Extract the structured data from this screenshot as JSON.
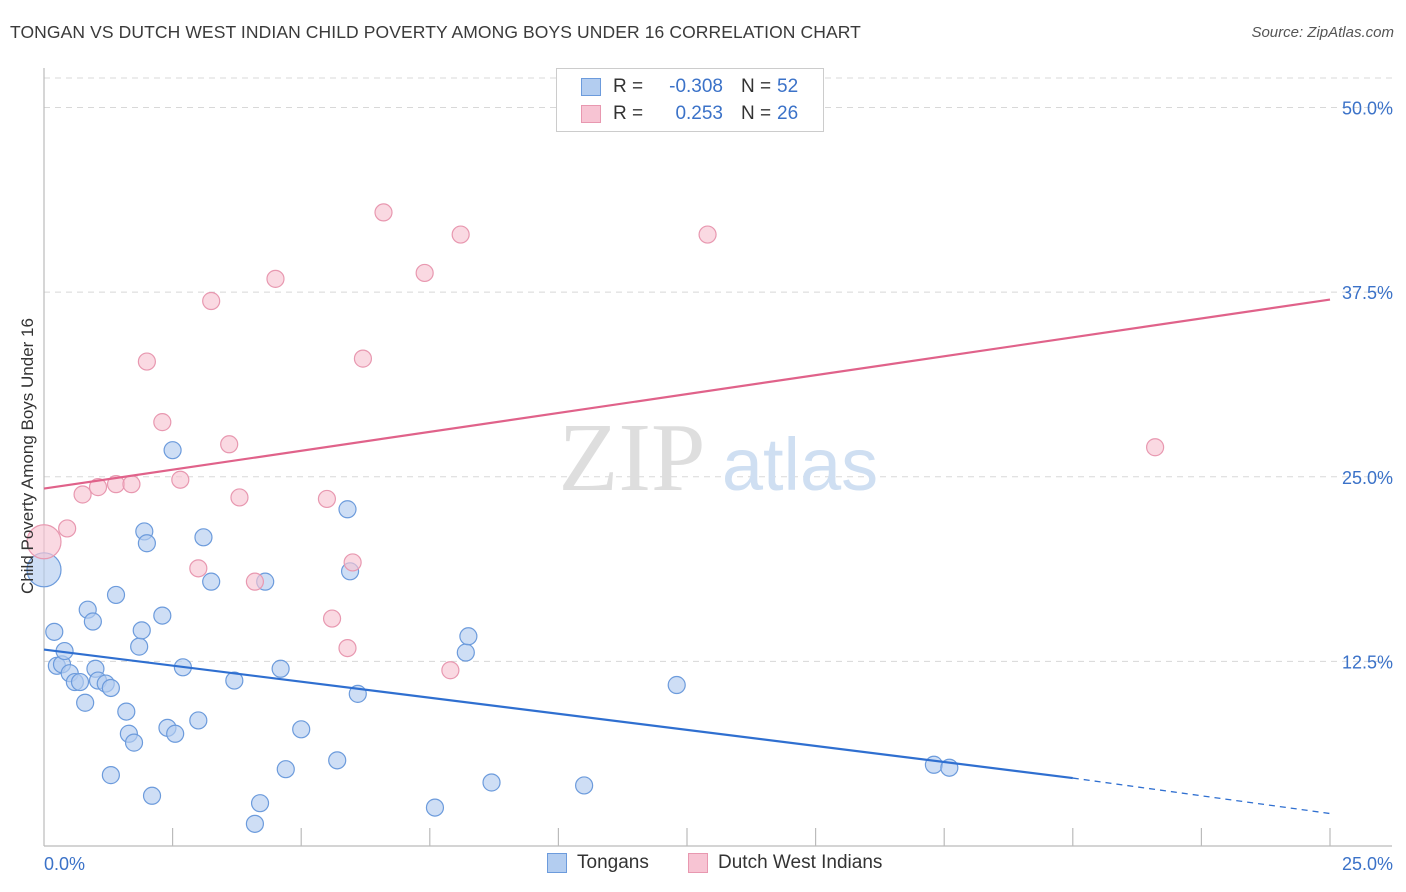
{
  "title": "TONGAN VS DUTCH WEST INDIAN CHILD POVERTY AMONG BOYS UNDER 16 CORRELATION CHART",
  "source": "Source: ZipAtlas.com",
  "watermark": {
    "zip": "ZIP",
    "atlas": "atlas"
  },
  "legend": {
    "series1": {
      "r_label": "R =",
      "r_value": "-0.308",
      "n_label": "N =",
      "n_value": "52"
    },
    "series2": {
      "r_label": "R =",
      "r_value": "0.253",
      "n_label": "N =",
      "n_value": "26"
    }
  },
  "colors": {
    "tongans_fill": "#b3cdf0",
    "tongans_stroke": "#6c9bdc",
    "tongans_line": "#2f6fd0",
    "dutch_fill": "#f7c4d3",
    "dutch_stroke": "#e898b0",
    "dutch_line": "#e0628a",
    "axis_text": "#3b72c8",
    "grid": "#d8d8d8"
  },
  "chart_data": {
    "type": "scatter",
    "title": "TONGAN VS DUTCH WEST INDIAN CHILD POVERTY AMONG BOYS UNDER 16 CORRELATION CHART",
    "xlabel": "",
    "ylabel": "Child Poverty Among Boys Under 16",
    "xlim": [
      0,
      25
    ],
    "ylim": [
      0,
      52
    ],
    "x_tick_labels": [
      {
        "value": 0,
        "label": "0.0%"
      },
      {
        "value": 25,
        "label": "25.0%"
      }
    ],
    "y_tick_labels": [
      {
        "value": 12.5,
        "label": "12.5%"
      },
      {
        "value": 25,
        "label": "25.0%"
      },
      {
        "value": 37.5,
        "label": "37.5%"
      },
      {
        "value": 50,
        "label": "50.0%"
      }
    ],
    "grid": true,
    "legend_position": "top-center",
    "series": [
      {
        "name": "Tongans",
        "r": -0.308,
        "n": 52,
        "points": [
          {
            "x": 0.0,
            "y": 18.7,
            "big": true
          },
          {
            "x": 0.2,
            "y": 14.5
          },
          {
            "x": 0.25,
            "y": 12.2
          },
          {
            "x": 0.35,
            "y": 12.3
          },
          {
            "x": 0.4,
            "y": 13.2
          },
          {
            "x": 0.5,
            "y": 11.7
          },
          {
            "x": 0.6,
            "y": 11.1
          },
          {
            "x": 0.7,
            "y": 11.1
          },
          {
            "x": 0.8,
            "y": 9.7
          },
          {
            "x": 0.85,
            "y": 16.0
          },
          {
            "x": 0.95,
            "y": 15.2
          },
          {
            "x": 1.0,
            "y": 12.0
          },
          {
            "x": 1.05,
            "y": 11.2
          },
          {
            "x": 1.2,
            "y": 11.0
          },
          {
            "x": 1.3,
            "y": 10.7
          },
          {
            "x": 1.4,
            "y": 17.0
          },
          {
            "x": 1.6,
            "y": 9.1
          },
          {
            "x": 1.65,
            "y": 7.6
          },
          {
            "x": 1.75,
            "y": 7.0
          },
          {
            "x": 1.3,
            "y": 4.8
          },
          {
            "x": 1.85,
            "y": 13.5
          },
          {
            "x": 1.9,
            "y": 14.6
          },
          {
            "x": 1.95,
            "y": 21.3
          },
          {
            "x": 2.0,
            "y": 20.5
          },
          {
            "x": 2.1,
            "y": 3.4
          },
          {
            "x": 2.3,
            "y": 15.6
          },
          {
            "x": 2.4,
            "y": 8.0
          },
          {
            "x": 2.5,
            "y": 26.8
          },
          {
            "x": 2.55,
            "y": 7.6
          },
          {
            "x": 2.7,
            "y": 12.1
          },
          {
            "x": 3.0,
            "y": 8.5
          },
          {
            "x": 3.1,
            "y": 20.9
          },
          {
            "x": 3.25,
            "y": 17.9
          },
          {
            "x": 3.7,
            "y": 11.2
          },
          {
            "x": 4.1,
            "y": 1.5
          },
          {
            "x": 4.2,
            "y": 2.9
          },
          {
            "x": 4.3,
            "y": 17.9
          },
          {
            "x": 4.6,
            "y": 12.0
          },
          {
            "x": 4.7,
            "y": 5.2
          },
          {
            "x": 5.0,
            "y": 7.9
          },
          {
            "x": 5.7,
            "y": 5.8
          },
          {
            "x": 5.9,
            "y": 22.8
          },
          {
            "x": 5.95,
            "y": 18.6
          },
          {
            "x": 6.1,
            "y": 10.3
          },
          {
            "x": 7.6,
            "y": 2.6
          },
          {
            "x": 8.2,
            "y": 13.1
          },
          {
            "x": 8.25,
            "y": 14.2
          },
          {
            "x": 8.7,
            "y": 4.3
          },
          {
            "x": 10.5,
            "y": 4.1
          },
          {
            "x": 12.3,
            "y": 10.9
          },
          {
            "x": 17.3,
            "y": 5.5
          },
          {
            "x": 17.6,
            "y": 5.3
          }
        ],
        "trend": {
          "x_start": 0,
          "y_start": 13.3,
          "x_solid_end": 20.0,
          "y_solid_end": 4.6,
          "x_end": 25,
          "y_end": 2.2
        }
      },
      {
        "name": "Dutch West Indians",
        "r": 0.253,
        "n": 26,
        "points": [
          {
            "x": 0.0,
            "y": 20.6,
            "big": true
          },
          {
            "x": 0.45,
            "y": 21.5
          },
          {
            "x": 0.75,
            "y": 23.8
          },
          {
            "x": 1.05,
            "y": 24.3
          },
          {
            "x": 1.4,
            "y": 24.5
          },
          {
            "x": 1.7,
            "y": 24.5
          },
          {
            "x": 2.0,
            "y": 32.8
          },
          {
            "x": 2.3,
            "y": 28.7
          },
          {
            "x": 2.65,
            "y": 24.8
          },
          {
            "x": 3.0,
            "y": 18.8
          },
          {
            "x": 3.25,
            "y": 36.9
          },
          {
            "x": 3.6,
            "y": 27.2
          },
          {
            "x": 3.8,
            "y": 23.6
          },
          {
            "x": 4.1,
            "y": 17.9
          },
          {
            "x": 4.5,
            "y": 38.4
          },
          {
            "x": 5.5,
            "y": 23.5
          },
          {
            "x": 5.6,
            "y": 15.4
          },
          {
            "x": 5.9,
            "y": 13.4
          },
          {
            "x": 6.0,
            "y": 19.2
          },
          {
            "x": 6.2,
            "y": 33.0
          },
          {
            "x": 6.6,
            "y": 42.9
          },
          {
            "x": 7.4,
            "y": 38.8
          },
          {
            "x": 7.9,
            "y": 11.9
          },
          {
            "x": 8.1,
            "y": 41.4
          },
          {
            "x": 12.9,
            "y": 41.4
          },
          {
            "x": 21.6,
            "y": 27.0
          }
        ],
        "trend": {
          "x_start": 0,
          "y_start": 24.2,
          "x_end": 25,
          "y_end": 37.0
        }
      }
    ]
  },
  "bottom_legend": {
    "tongans": "Tongans",
    "dutch": "Dutch West Indians"
  }
}
